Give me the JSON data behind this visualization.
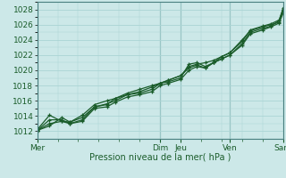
{
  "background_color": "#cce8e8",
  "grid_color": "#aad4d4",
  "line_color": "#1a5c2a",
  "xlabel": "Pression niveau de la mer( hPa )",
  "ylim": [
    1011.0,
    1029.0
  ],
  "yticks": [
    1012,
    1014,
    1016,
    1018,
    1020,
    1022,
    1024,
    1026,
    1028
  ],
  "xlim": [
    0,
    6.0
  ],
  "day_labels": [
    "Mer",
    "Dim",
    "Jeu",
    "Ven",
    "Sam"
  ],
  "day_positions": [
    0.0,
    3.0,
    3.5,
    4.7,
    6.0
  ],
  "series": [
    [
      0.0,
      1012.1,
      0.3,
      1012.7,
      0.6,
      1013.8,
      0.8,
      1013.2,
      1.1,
      1013.8,
      1.4,
      1015.2,
      1.7,
      1015.5,
      1.9,
      1016.3,
      2.2,
      1016.8,
      2.5,
      1017.0,
      2.8,
      1017.5,
      3.0,
      1018.3,
      3.2,
      1018.7,
      3.5,
      1019.3,
      3.7,
      1020.5,
      3.9,
      1020.8,
      4.1,
      1021.0,
      4.3,
      1021.3,
      4.5,
      1021.8,
      4.7,
      1022.3,
      5.0,
      1023.8,
      5.2,
      1025.3,
      5.5,
      1025.8,
      5.7,
      1026.1,
      5.9,
      1026.6,
      6.0,
      1028.0
    ],
    [
      0.0,
      1012.1,
      0.3,
      1013.0,
      0.6,
      1013.3,
      0.8,
      1013.0,
      1.1,
      1013.3,
      1.4,
      1015.0,
      1.7,
      1015.2,
      1.9,
      1015.8,
      2.2,
      1016.5,
      2.5,
      1016.8,
      2.8,
      1017.2,
      3.0,
      1018.0,
      3.2,
      1018.3,
      3.5,
      1018.8,
      3.7,
      1020.0,
      3.9,
      1020.5,
      4.1,
      1020.3,
      4.3,
      1021.0,
      4.5,
      1021.5,
      4.7,
      1022.0,
      5.0,
      1023.3,
      5.2,
      1024.8,
      5.5,
      1025.3,
      5.7,
      1025.7,
      5.9,
      1026.2,
      6.0,
      1027.5
    ],
    [
      0.0,
      1012.1,
      0.3,
      1013.5,
      0.6,
      1013.5,
      0.8,
      1013.0,
      1.1,
      1013.5,
      1.4,
      1015.2,
      1.7,
      1015.6,
      1.9,
      1016.0,
      2.2,
      1016.8,
      2.5,
      1017.2,
      2.8,
      1017.8,
      3.0,
      1018.3,
      3.2,
      1018.5,
      3.5,
      1019.0,
      3.7,
      1020.8,
      3.9,
      1021.0,
      4.1,
      1020.5,
      4.3,
      1021.0,
      4.5,
      1021.8,
      4.7,
      1022.3,
      5.0,
      1024.0,
      5.2,
      1025.2,
      5.5,
      1025.7,
      5.7,
      1026.0,
      5.9,
      1026.3,
      6.0,
      1027.8
    ],
    [
      0.0,
      1012.2,
      0.3,
      1014.1,
      0.6,
      1013.3,
      0.8,
      1013.2,
      1.1,
      1014.1,
      1.4,
      1015.5,
      1.7,
      1016.0,
      1.9,
      1016.3,
      2.2,
      1017.0,
      2.5,
      1017.5,
      2.8,
      1018.0,
      3.0,
      1018.3,
      3.2,
      1018.7,
      3.5,
      1019.3,
      3.7,
      1020.3,
      3.9,
      1020.7,
      4.1,
      1020.3,
      4.3,
      1021.0,
      4.5,
      1021.5,
      4.7,
      1022.0,
      5.0,
      1023.5,
      5.2,
      1025.0,
      5.5,
      1025.5,
      5.7,
      1025.8,
      5.9,
      1026.5,
      6.0,
      1028.2
    ]
  ]
}
